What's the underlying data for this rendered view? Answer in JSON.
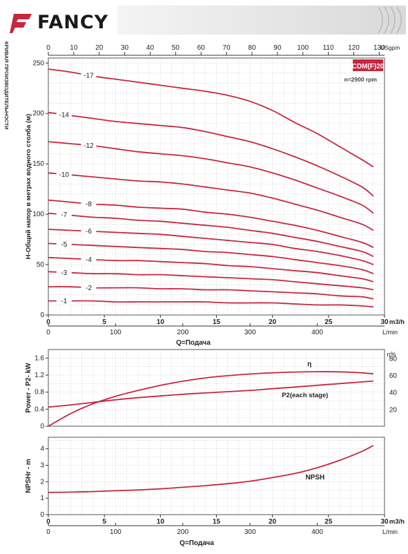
{
  "brand": {
    "name": "FANCY",
    "accent": "#c8263f"
  },
  "side_label": "КРИВАЯ ПРОИЗВОДИТЕЛЬНОСТИ",
  "chart_data": [
    {
      "type": "line",
      "model_badge": "CDM(F)20",
      "speed": "n=2900 rpm",
      "ylabel": "H-Общий напор в метрах водного столба (м)",
      "xlabel": "Q=Подача",
      "x_unit": "m3/h",
      "x_unit2": "L/min",
      "x_unit_top": "USgpm",
      "xlim": [
        0,
        30
      ],
      "ylim": [
        0,
        255
      ],
      "x_ticks": [
        0,
        5,
        10,
        15,
        20,
        25,
        30
      ],
      "x_tick_labels": [
        "0",
        "5",
        "10",
        "15",
        "20",
        "25",
        "30"
      ],
      "y_ticks": [
        0,
        50,
        100,
        150,
        200,
        250
      ],
      "lmin_ticks": [
        0,
        100,
        200,
        300,
        400
      ],
      "usgpm_ticks": [
        0,
        10,
        20,
        30,
        40,
        50,
        60,
        70,
        80,
        90,
        100,
        110,
        120,
        130
      ],
      "x": [
        0,
        2,
        4,
        6,
        8,
        10,
        12,
        14,
        16,
        18,
        20,
        22,
        24,
        26,
        28,
        29
      ],
      "series": [
        {
          "name": "-17",
          "label_x": 3.6,
          "values": [
            244,
            241,
            237,
            234,
            231,
            228,
            225,
            222,
            218,
            212,
            203,
            191,
            180,
            167,
            154,
            147
          ]
        },
        {
          "name": "-14",
          "label_x": 1.4,
          "values": [
            201,
            198,
            195,
            192,
            190,
            188,
            186,
            182,
            177,
            172,
            165,
            157,
            148,
            138,
            127,
            118
          ]
        },
        {
          "name": "-12",
          "label_x": 3.6,
          "values": [
            172,
            170,
            168,
            165,
            162,
            160,
            158,
            155,
            151,
            147,
            141,
            134,
            126,
            118,
            109,
            101
          ]
        },
        {
          "name": "-10",
          "label_x": 1.4,
          "values": [
            141,
            139,
            137,
            135,
            133,
            132,
            130,
            127,
            124,
            121,
            116,
            110,
            104,
            97,
            90,
            84
          ]
        },
        {
          "name": "-8",
          "label_x": 3.6,
          "values": [
            114,
            112,
            110,
            109,
            107,
            106,
            105,
            102,
            100,
            97,
            93,
            89,
            84,
            78,
            72,
            67
          ]
        },
        {
          "name": "-7",
          "label_x": 1.4,
          "values": [
            101,
            99,
            97,
            96,
            94,
            93,
            91,
            89,
            87,
            84,
            81,
            77,
            73,
            68,
            63,
            58
          ]
        },
        {
          "name": "-6",
          "label_x": 3.6,
          "values": [
            85,
            84,
            83,
            82,
            81,
            80,
            78,
            76,
            74,
            72,
            70,
            66,
            63,
            59,
            54,
            50
          ]
        },
        {
          "name": "-5",
          "label_x": 1.4,
          "values": [
            71,
            70,
            69,
            68,
            67,
            66,
            65,
            63,
            62,
            60,
            58,
            55,
            52,
            49,
            45,
            41
          ]
        },
        {
          "name": "-4",
          "label_x": 3.6,
          "values": [
            57,
            56,
            55,
            54,
            54,
            53,
            52,
            51,
            49,
            48,
            46,
            44,
            42,
            39,
            36,
            33
          ]
        },
        {
          "name": "-3",
          "label_x": 1.4,
          "values": [
            43,
            42,
            41,
            41,
            40,
            40,
            39,
            38,
            37,
            36,
            35,
            33,
            31,
            29,
            27,
            25
          ]
        },
        {
          "name": "-2",
          "label_x": 3.6,
          "values": [
            28,
            28,
            27,
            27,
            27,
            26,
            26,
            25,
            25,
            24,
            23,
            22,
            21,
            19,
            18,
            16
          ]
        },
        {
          "name": "-1",
          "label_x": 1.4,
          "values": [
            14,
            14,
            14,
            13,
            13,
            13,
            13,
            13,
            12,
            12,
            12,
            11,
            10,
            10,
            9,
            8
          ]
        }
      ]
    },
    {
      "type": "line",
      "ylabel": "Power - P2- kW",
      "y2label": "η%",
      "xlim": [
        0,
        30
      ],
      "ylim": [
        0,
        1.8
      ],
      "y_ticks": [
        0,
        0.4,
        0.8,
        1.2,
        1.6
      ],
      "y_tick_labels": [
        "0",
        "0.4",
        "0.8",
        "1.2",
        "1.6"
      ],
      "y2_ticks": [
        20,
        40,
        60,
        80
      ],
      "x": [
        0,
        2,
        4,
        6,
        8,
        10,
        12,
        14,
        16,
        18,
        20,
        22,
        24,
        26,
        28,
        29
      ],
      "series": [
        {
          "name": "η",
          "axis": "right",
          "values": [
            0,
            14.8,
            26.4,
            35.1,
            41.9,
            47.9,
            52.8,
            56.7,
            59.3,
            61.3,
            62.7,
            63.6,
            64.0,
            63.8,
            62.6,
            61.5
          ]
        },
        {
          "name": "P2(each stage)",
          "axis": "left",
          "values": [
            0.45,
            0.5,
            0.56,
            0.62,
            0.67,
            0.71,
            0.75,
            0.78,
            0.81,
            0.84,
            0.88,
            0.92,
            0.96,
            1.0,
            1.04,
            1.06
          ]
        }
      ]
    },
    {
      "type": "line",
      "ylabel": "NPSHr - m",
      "xlabel": "Q=Подача",
      "x_unit": "m3/h",
      "x_unit2": "L/min",
      "xlim": [
        0,
        30
      ],
      "ylim": [
        0,
        4.7
      ],
      "y_ticks": [
        0,
        1,
        2,
        3,
        4
      ],
      "x_ticks": [
        0,
        5,
        10,
        15,
        20,
        25,
        30
      ],
      "x_tick_labels": [
        "0",
        "5",
        "10",
        "15",
        "20",
        "25",
        "30"
      ],
      "lmin_ticks": [
        0,
        100,
        200,
        300,
        400
      ],
      "x": [
        0,
        2,
        4,
        6,
        8,
        10,
        12,
        14,
        16,
        18,
        20,
        22,
        24,
        26,
        28,
        29
      ],
      "series": [
        {
          "name": "NPSH",
          "values": [
            1.35,
            1.37,
            1.4,
            1.45,
            1.5,
            1.57,
            1.66,
            1.76,
            1.88,
            2.03,
            2.25,
            2.5,
            2.85,
            3.3,
            3.85,
            4.2
          ]
        }
      ]
    }
  ]
}
